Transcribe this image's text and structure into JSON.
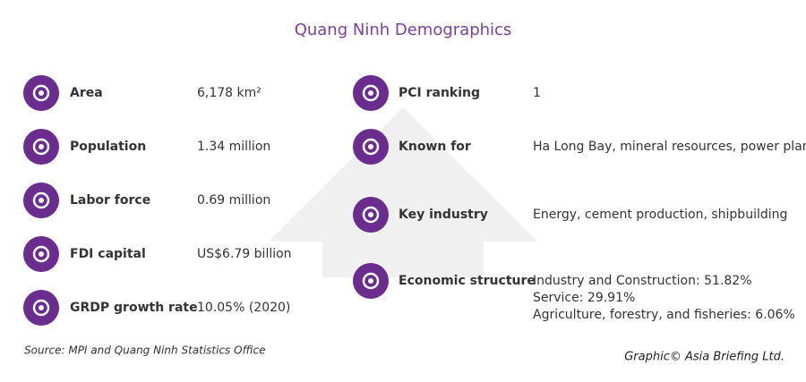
{
  "header": {
    "title": "Quang Ninh Demographics"
  },
  "left": [
    {
      "label": "Area",
      "value": "6,178 km²"
    },
    {
      "label": "Population",
      "value": "1.34 million"
    },
    {
      "label": "Labor force",
      "value": "0.69 million"
    },
    {
      "label": "FDI capital",
      "value": "US$6.79 billion"
    },
    {
      "label": "GRDP growth rate",
      "value": "10.05% (2020)"
    }
  ],
  "right": [
    {
      "label": "PCI ranking",
      "lines": [
        "1"
      ]
    },
    {
      "label": "Known for",
      "lines": [
        "Ha Long Bay, mineral resources, power plants"
      ]
    },
    {
      "label": "Key industry",
      "lines": [
        "Energy, cement production, shipbuilding"
      ]
    },
    {
      "label": "Economic structure",
      "lines": [
        "Industry and Construction: 51.82%",
        "Service: 29.91%",
        "Agriculture, forestry, and fisheries: 6.06%"
      ]
    }
  ],
  "footer": {
    "source": "Source: MPI and Quang Ninh Statistics Office",
    "credit": "Graphic© Asia Briefing Ltd."
  }
}
